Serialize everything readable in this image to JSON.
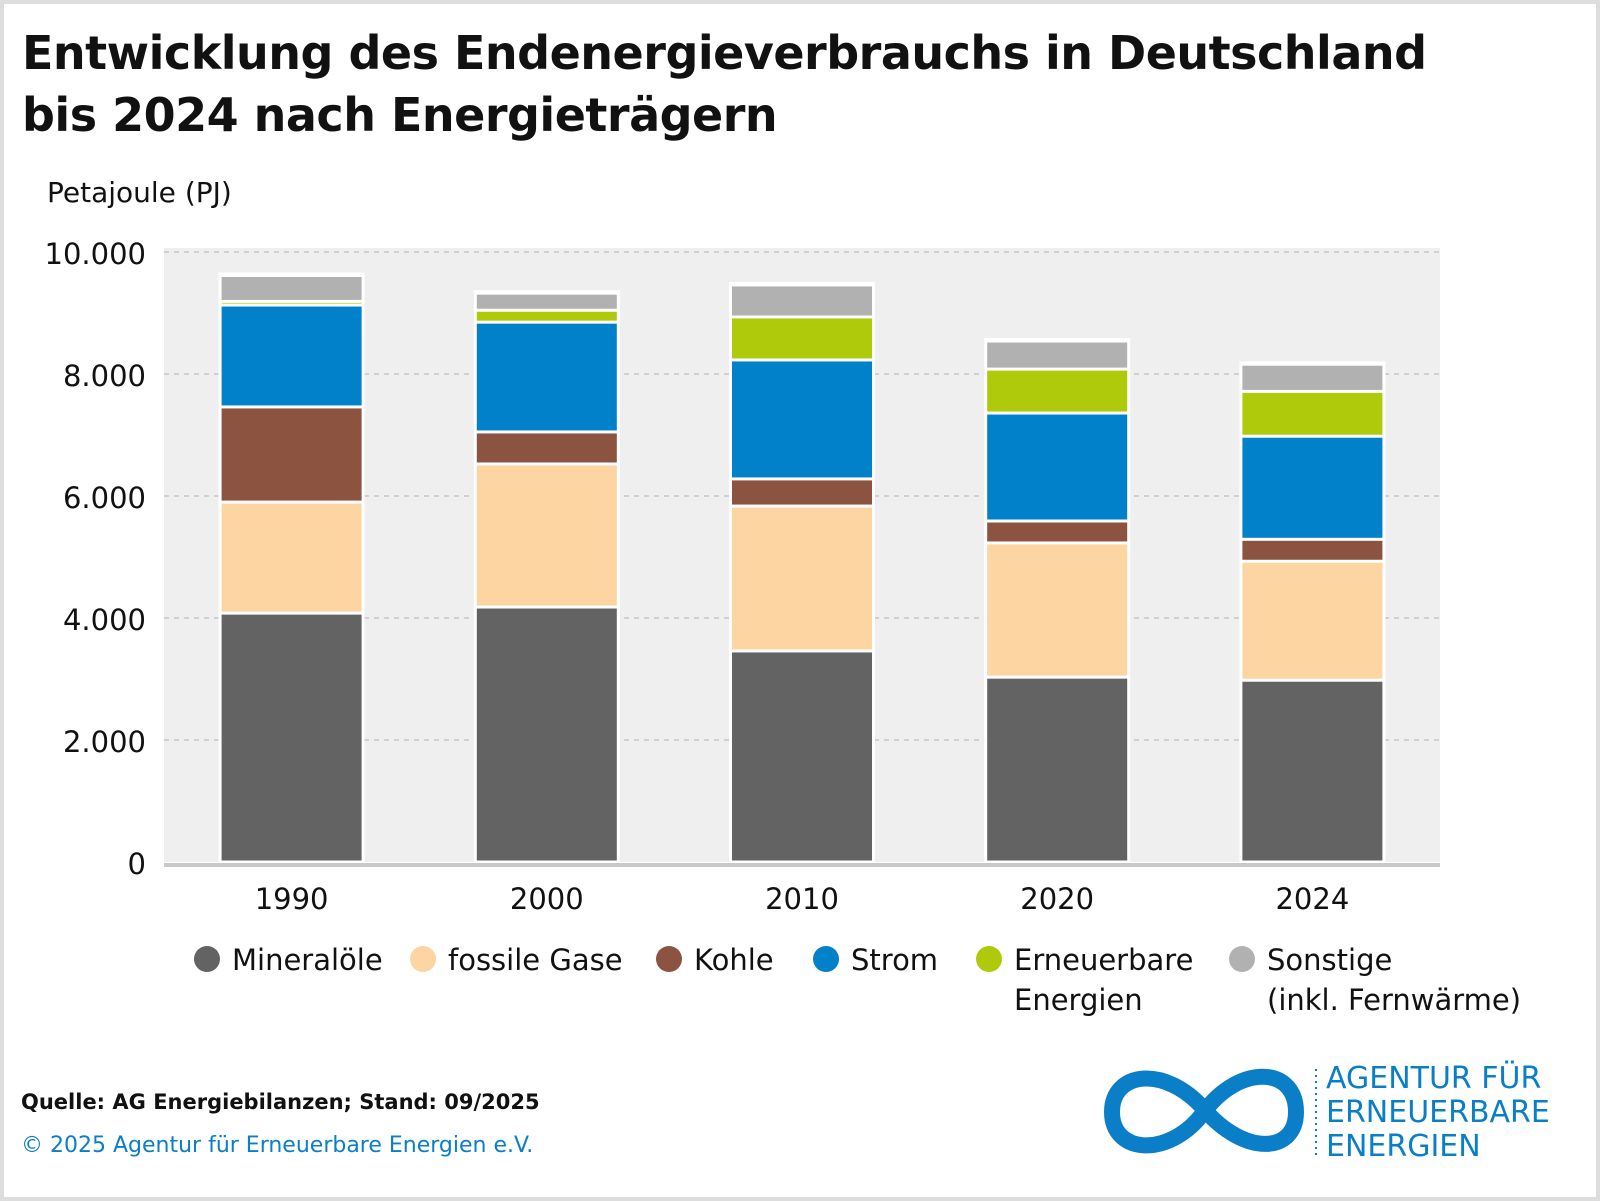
{
  "title_line1": "Entwicklung des Endenergieverbrauchs in Deutschland",
  "title_line2": "bis 2024 nach Energieträgern",
  "source": "Quelle: AG Energiebilanzen; Stand: 09/2025",
  "copyright": "© 2025 Agentur für Erneuerbare Energien e.V.",
  "logo": {
    "line1": "AGENTUR FÜR",
    "line2": "ERNEUERBARE",
    "line3": "ENERGIEN"
  },
  "chart_data": {
    "type": "bar",
    "stacked": true,
    "ylabel": "Petajoule (PJ)",
    "ylim": [
      0,
      10000
    ],
    "yticks": [
      "0",
      "2.000",
      "4.000",
      "6.000",
      "8.000",
      "10.000"
    ],
    "grid": true,
    "legend": "bottom",
    "categories": [
      "1990",
      "2000",
      "2010",
      "2020",
      "2024"
    ],
    "series": [
      {
        "name": "Mineralöle",
        "color": "#646363",
        "values": [
          4080,
          4180,
          3460,
          3030,
          2980
        ]
      },
      {
        "name": "fossile Gase",
        "color": "#fdd5a2",
        "values": [
          1820,
          2345,
          2375,
          2200,
          1950
        ]
      },
      {
        "name": "Kohle",
        "color": "#8b5340",
        "values": [
          1560,
          525,
          445,
          360,
          360
        ]
      },
      {
        "name": "Strom",
        "color": "#0081c9",
        "values": [
          1670,
          1800,
          1950,
          1770,
          1690
        ]
      },
      {
        "name": "Erneuerbare Energien",
        "color": "#afca0b",
        "values": [
          60,
          195,
          705,
          720,
          735
        ]
      },
      {
        "name": "Sonstige (inkl. Fernwärme)",
        "color": "#b2b1b1",
        "values": [
          425,
          280,
          525,
          460,
          445
        ]
      }
    ]
  },
  "legend_labels": [
    [
      "Mineralöle",
      ""
    ],
    [
      "fossile Gase",
      ""
    ],
    [
      "Kohle",
      ""
    ],
    [
      "Strom",
      ""
    ],
    [
      "Erneuerbare",
      "Energien"
    ],
    [
      "Sonstige",
      "(inkl. Fernwärme)"
    ]
  ]
}
